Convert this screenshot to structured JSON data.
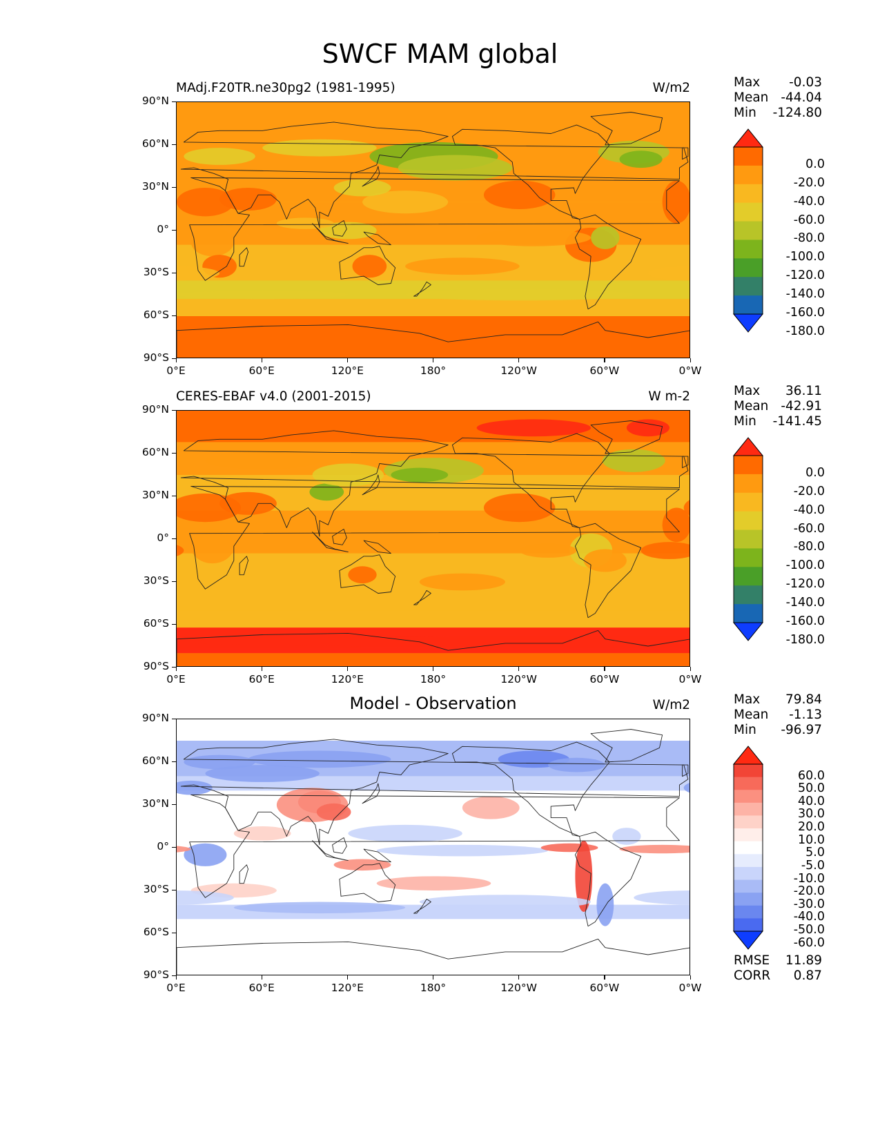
{
  "title": "SWCF MAM global",
  "lat_ticks": [
    "90°N",
    "60°N",
    "30°N",
    "0°",
    "30°S",
    "60°S",
    "90°S"
  ],
  "lon_ticks": [
    "0°E",
    "60°E",
    "120°E",
    "180°",
    "120°W",
    "60°W",
    "0°W"
  ],
  "panels": [
    {
      "id": "model",
      "title": "MAdj.F20TR.ne30pg2 (1981-1995)",
      "center_title": "",
      "units": "W/m2",
      "stats": [
        {
          "label": "Max",
          "value": "-0.03"
        },
        {
          "label": "Mean",
          "value": "-44.04"
        },
        {
          "label": "Min",
          "value": "-124.80"
        }
      ],
      "colorbar_labels": [
        "0.0",
        "-20.0",
        "-40.0",
        "-60.0",
        "-80.0",
        "-100.0",
        "-120.0",
        "-140.0",
        "-160.0",
        "-180.0"
      ],
      "colorbar_colors": [
        "#ff2a12",
        "#ff6a00",
        "#ff9a10",
        "#f9b820",
        "#e3cc2a",
        "#b8c428",
        "#7db41c",
        "#4a9f28",
        "#338068",
        "#1867b4",
        "#0e3dff"
      ]
    },
    {
      "id": "obs",
      "title": "CERES-EBAF v4.0 (2001-2015)",
      "center_title": "",
      "units": "W m-2",
      "stats": [
        {
          "label": "Max",
          "value": "36.11"
        },
        {
          "label": "Mean",
          "value": "-42.91"
        },
        {
          "label": "Min",
          "value": "-141.45"
        }
      ],
      "colorbar_labels": [
        "0.0",
        "-20.0",
        "-40.0",
        "-60.0",
        "-80.0",
        "-100.0",
        "-120.0",
        "-140.0",
        "-160.0",
        "-180.0"
      ],
      "colorbar_colors": [
        "#ff2a12",
        "#ff6a00",
        "#ff9a10",
        "#f9b820",
        "#e3cc2a",
        "#b8c428",
        "#7db41c",
        "#4a9f28",
        "#338068",
        "#1867b4",
        "#0e3dff"
      ]
    },
    {
      "id": "diff",
      "title": "",
      "center_title": "Model - Observation",
      "units": "W/m2",
      "stats": [
        {
          "label": "Max",
          "value": "79.84"
        },
        {
          "label": "Mean",
          "value": "-1.13"
        },
        {
          "label": "Min",
          "value": "-96.97"
        }
      ],
      "colorbar_labels": [
        "60.0",
        "50.0",
        "40.0",
        "30.0",
        "20.0",
        "10.0",
        "5.0",
        "-5.0",
        "-10.0",
        "-20.0",
        "-30.0",
        "-40.0",
        "-50.0",
        "-60.0"
      ],
      "colorbar_colors": [
        "#ff2a12",
        "#f24536",
        "#f76a5a",
        "#fb9080",
        "#fdb3a6",
        "#fed2c8",
        "#ffeeea",
        "#ffffff",
        "#e6ecfd",
        "#c9d5fb",
        "#a9bbf6",
        "#8aa2f2",
        "#6a87ef",
        "#4a6af0",
        "#0e3dff"
      ],
      "extra_stats": [
        {
          "label": "RMSE",
          "value": "11.89"
        },
        {
          "label": "CORR",
          "value": "0.87"
        }
      ]
    }
  ]
}
